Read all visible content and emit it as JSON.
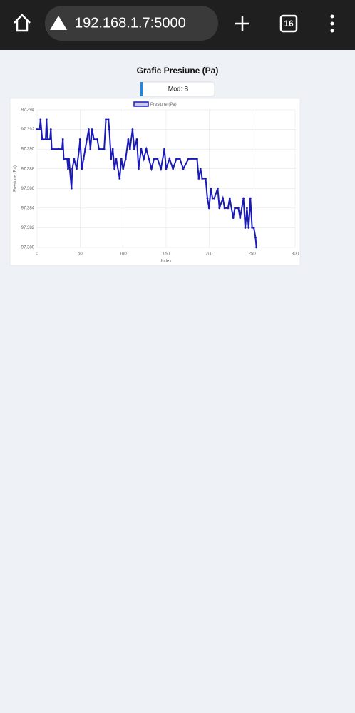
{
  "browser": {
    "url": "192.168.1.7:5000",
    "tab_count": 16
  },
  "page": {
    "title": "Grafic Presiune (Pa)",
    "button": "Mod: B"
  },
  "chart_data": {
    "type": "line",
    "x_label": "Index",
    "y_label": "Presiune (Pa)",
    "grid": true,
    "legend": "top",
    "xlim": [
      0,
      300
    ],
    "xticks": [
      0,
      50,
      100,
      150,
      200,
      250,
      300
    ],
    "ylim": [
      97.38,
      97.394
    ],
    "yticks": [
      {
        "value": 97.38,
        "label": "97.380"
      },
      97.382,
      97.384,
      97.386,
      97.388,
      {
        "value": 97.39,
        "label": "97.390"
      },
      97.392,
      97.394
    ],
    "x": [
      0,
      3,
      4,
      6,
      10,
      11,
      12,
      15,
      16,
      17,
      25,
      29,
      30,
      31,
      35,
      36,
      37,
      40,
      41,
      43,
      46,
      49,
      50,
      52,
      54,
      56,
      60,
      62,
      64,
      66,
      70,
      72,
      78,
      80,
      83,
      84,
      86,
      88,
      90,
      92,
      96,
      98,
      100,
      103,
      106,
      108,
      111,
      113,
      116,
      118,
      121,
      124,
      127,
      130,
      133,
      136,
      140,
      144,
      148,
      150,
      154,
      158,
      162,
      166,
      170,
      176,
      186,
      188,
      190,
      192,
      196,
      198,
      200,
      202,
      204,
      206,
      210,
      212,
      216,
      218,
      222,
      224,
      228,
      230,
      234,
      236,
      240,
      242,
      244,
      246,
      248,
      250,
      252,
      254,
      255
    ],
    "series": [
      {
        "name": "Presiune (Pa)",
        "color": "#1a1ab8",
        "values": [
          97.392,
          97.392,
          97.393,
          97.391,
          97.391,
          97.393,
          97.391,
          97.391,
          97.392,
          97.39,
          97.39,
          97.39,
          97.391,
          97.389,
          97.389,
          97.388,
          97.389,
          97.386,
          97.388,
          97.389,
          97.388,
          97.39,
          97.391,
          97.388,
          97.389,
          97.39,
          97.392,
          97.39,
          97.392,
          97.391,
          97.391,
          97.39,
          97.39,
          97.393,
          97.393,
          97.392,
          97.389,
          97.39,
          97.388,
          97.389,
          97.387,
          97.389,
          97.388,
          97.389,
          97.391,
          97.39,
          97.392,
          97.39,
          97.391,
          97.388,
          97.39,
          97.389,
          97.39,
          97.389,
          97.388,
          97.389,
          97.389,
          97.388,
          97.39,
          97.388,
          97.389,
          97.388,
          97.389,
          97.389,
          97.388,
          97.389,
          97.389,
          97.387,
          97.388,
          97.387,
          97.387,
          97.385,
          97.384,
          97.386,
          97.385,
          97.385,
          97.386,
          97.384,
          97.385,
          97.384,
          97.384,
          97.385,
          97.383,
          97.384,
          97.384,
          97.383,
          97.385,
          97.382,
          97.384,
          97.382,
          97.385,
          97.382,
          97.382,
          97.381,
          97.38
        ]
      }
    ]
  }
}
